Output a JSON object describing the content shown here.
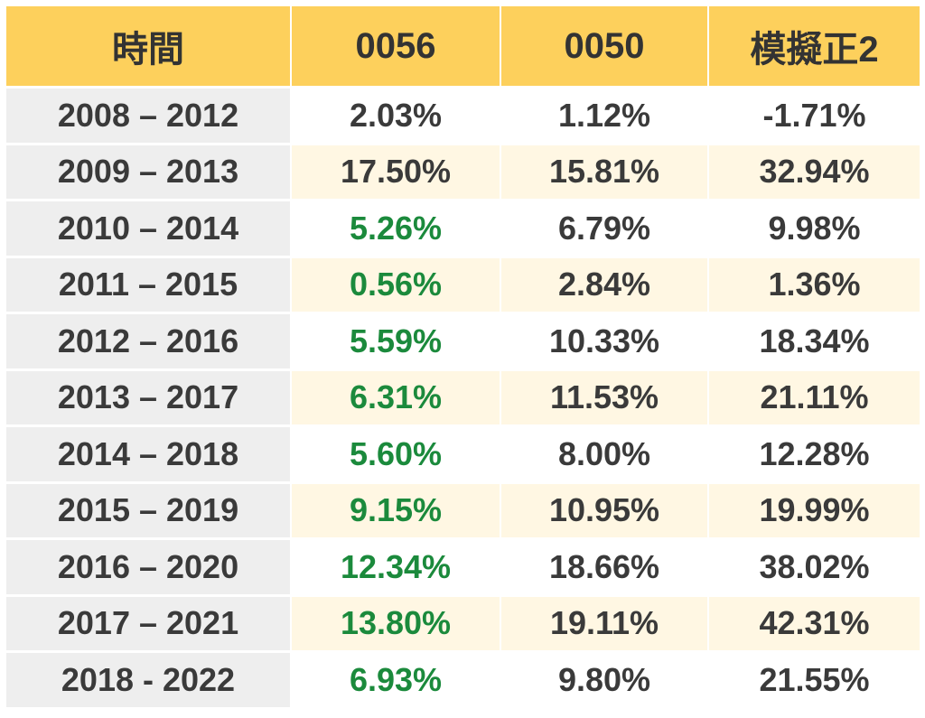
{
  "headers": [
    "時間",
    "0056",
    "0050",
    "模擬正2"
  ],
  "rows": [
    {
      "period": "2008 – 2012",
      "v0056": "2.03%",
      "v0050": "1.12%",
      "vsim": "-1.71%"
    },
    {
      "period": "2009 – 2013",
      "v0056": "17.50%",
      "v0050": "15.81%",
      "vsim": "32.94%"
    },
    {
      "period": "2010 – 2014",
      "v0056": "5.26%",
      "v0050": "6.79%",
      "vsim": "9.98%"
    },
    {
      "period": "2011 – 2015",
      "v0056": "0.56%",
      "v0050": "2.84%",
      "vsim": "1.36%"
    },
    {
      "period": "2012 – 2016",
      "v0056": "5.59%",
      "v0050": "10.33%",
      "vsim": "18.34%"
    },
    {
      "period": "2013 – 2017",
      "v0056": "6.31%",
      "v0050": "11.53%",
      "vsim": "21.11%"
    },
    {
      "period": "2014 – 2018",
      "v0056": "5.60%",
      "v0050": "8.00%",
      "vsim": "12.28%"
    },
    {
      "period": "2015 – 2019",
      "v0056": "9.15%",
      "v0050": "10.95%",
      "vsim": "19.99%"
    },
    {
      "period": "2016 – 2020",
      "v0056": "12.34%",
      "v0050": "18.66%",
      "vsim": "38.02%"
    },
    {
      "period": "2017 – 2021",
      "v0056": "13.80%",
      "v0050": "19.11%",
      "vsim": "42.31%"
    },
    {
      "period": "2018 - 2022",
      "v0056": "6.93%",
      "v0050": "9.80%",
      "vsim": "21.55%"
    }
  ],
  "colors": {
    "header_bg": "#fdd05c",
    "period_bg": "#eeeeee",
    "alt_row_bg": "#fff7e3",
    "text": "#3a3a3a",
    "highlight_green": "#1b8a3c"
  }
}
